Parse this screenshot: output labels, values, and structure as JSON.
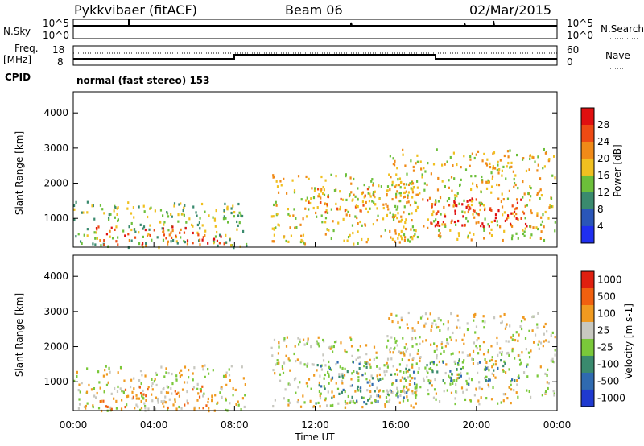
{
  "header": {
    "title": "Pykkvibaer (fitACF)",
    "beam": "Beam 06",
    "date": "02/Mar/2015"
  },
  "sky_panel": {
    "left_label": "N.Sky",
    "left_ticks": [
      "10^5",
      "10^0"
    ],
    "right_label": "N.Search",
    "right_ticks": [
      "10^5",
      "10^0"
    ]
  },
  "freq_panel": {
    "left_label_line1": "Freq.",
    "left_label_line2": "[MHz]",
    "left_ticks": [
      "18",
      "8"
    ],
    "right_label": "Nave",
    "right_ticks": [
      "60",
      "0"
    ],
    "cpid_label": "CPID",
    "cpid_text": "normal (fast stereo) 153"
  },
  "x_axis": {
    "label": "Time UT",
    "ticks": [
      "00:00",
      "04:00",
      "08:00",
      "12:00",
      "16:00",
      "20:00",
      "00:00"
    ]
  },
  "colors": {
    "power_scale": [
      "#1f2ff0",
      "#2a56b8",
      "#3a8a6e",
      "#6cbf3a",
      "#f0c020",
      "#f08a18",
      "#ee4a14",
      "#e01010"
    ],
    "velocity_scale": [
      "#1f3ad0",
      "#2f6ab0",
      "#3a8a6e",
      "#7ac83a",
      "#c8c8c0",
      "#f09a20",
      "#f06010",
      "#e02010"
    ]
  },
  "chart_data": [
    {
      "type": "heatmap",
      "title": "Power",
      "ylabel": "Slant Range [km]",
      "xlabel": "",
      "y_ticks": [
        "1000",
        "2000",
        "3000",
        "4000"
      ],
      "colorbar_label": "Power [dB]",
      "colorbar_ticks": [
        "4",
        "8",
        "12",
        "16",
        "20",
        "24",
        "28"
      ],
      "xlim_hours": [
        0,
        24
      ],
      "ylim_km": [
        180,
        4600
      ],
      "regions": [
        {
          "t0": 0.0,
          "t1": 8.6,
          "r0": 200,
          "r1": 1500,
          "level": 3
        },
        {
          "t0": 1.0,
          "t1": 6.5,
          "r0": 250,
          "r1": 800,
          "level": 6
        },
        {
          "t0": 6.5,
          "t1": 7.6,
          "r0": 250,
          "r1": 600,
          "level": 7
        },
        {
          "t0": 9.8,
          "t1": 17.0,
          "r0": 300,
          "r1": 2300,
          "level": 4
        },
        {
          "t0": 11.5,
          "t1": 15.0,
          "r0": 1200,
          "r1": 1900,
          "level": 5
        },
        {
          "t0": 15.5,
          "t1": 23.9,
          "r0": 400,
          "r1": 3000,
          "level": 4
        },
        {
          "t0": 17.5,
          "t1": 22.5,
          "r0": 800,
          "r1": 1600,
          "level": 7
        }
      ]
    },
    {
      "type": "heatmap",
      "title": "Velocity",
      "ylabel": "Slant Range [km]",
      "xlabel": "Time UT",
      "y_ticks": [
        "1000",
        "2000",
        "3000",
        "4000"
      ],
      "colorbar_label": "Velocity [m s-1]",
      "colorbar_ticks": [
        "1000",
        "500",
        "100",
        "25",
        "-25",
        "-100",
        "-500",
        "-1000"
      ],
      "xlim_hours": [
        0,
        24
      ],
      "ylim_km": [
        180,
        4600
      ],
      "regions": [
        {
          "t0": 0.0,
          "t1": 8.6,
          "r0": 200,
          "r1": 1500,
          "level": 4
        },
        {
          "t0": 1.0,
          "t1": 7.0,
          "r0": 250,
          "r1": 900,
          "level": 5
        },
        {
          "t0": 9.8,
          "t1": 17.0,
          "r0": 300,
          "r1": 2300,
          "level": 4
        },
        {
          "t0": 12.0,
          "t1": 17.0,
          "r0": 400,
          "r1": 1600,
          "level": 2
        },
        {
          "t0": 15.5,
          "t1": 23.9,
          "r0": 400,
          "r1": 3000,
          "level": 4
        },
        {
          "t0": 17.5,
          "t1": 22.5,
          "r0": 900,
          "r1": 1700,
          "level": 2
        }
      ]
    }
  ]
}
